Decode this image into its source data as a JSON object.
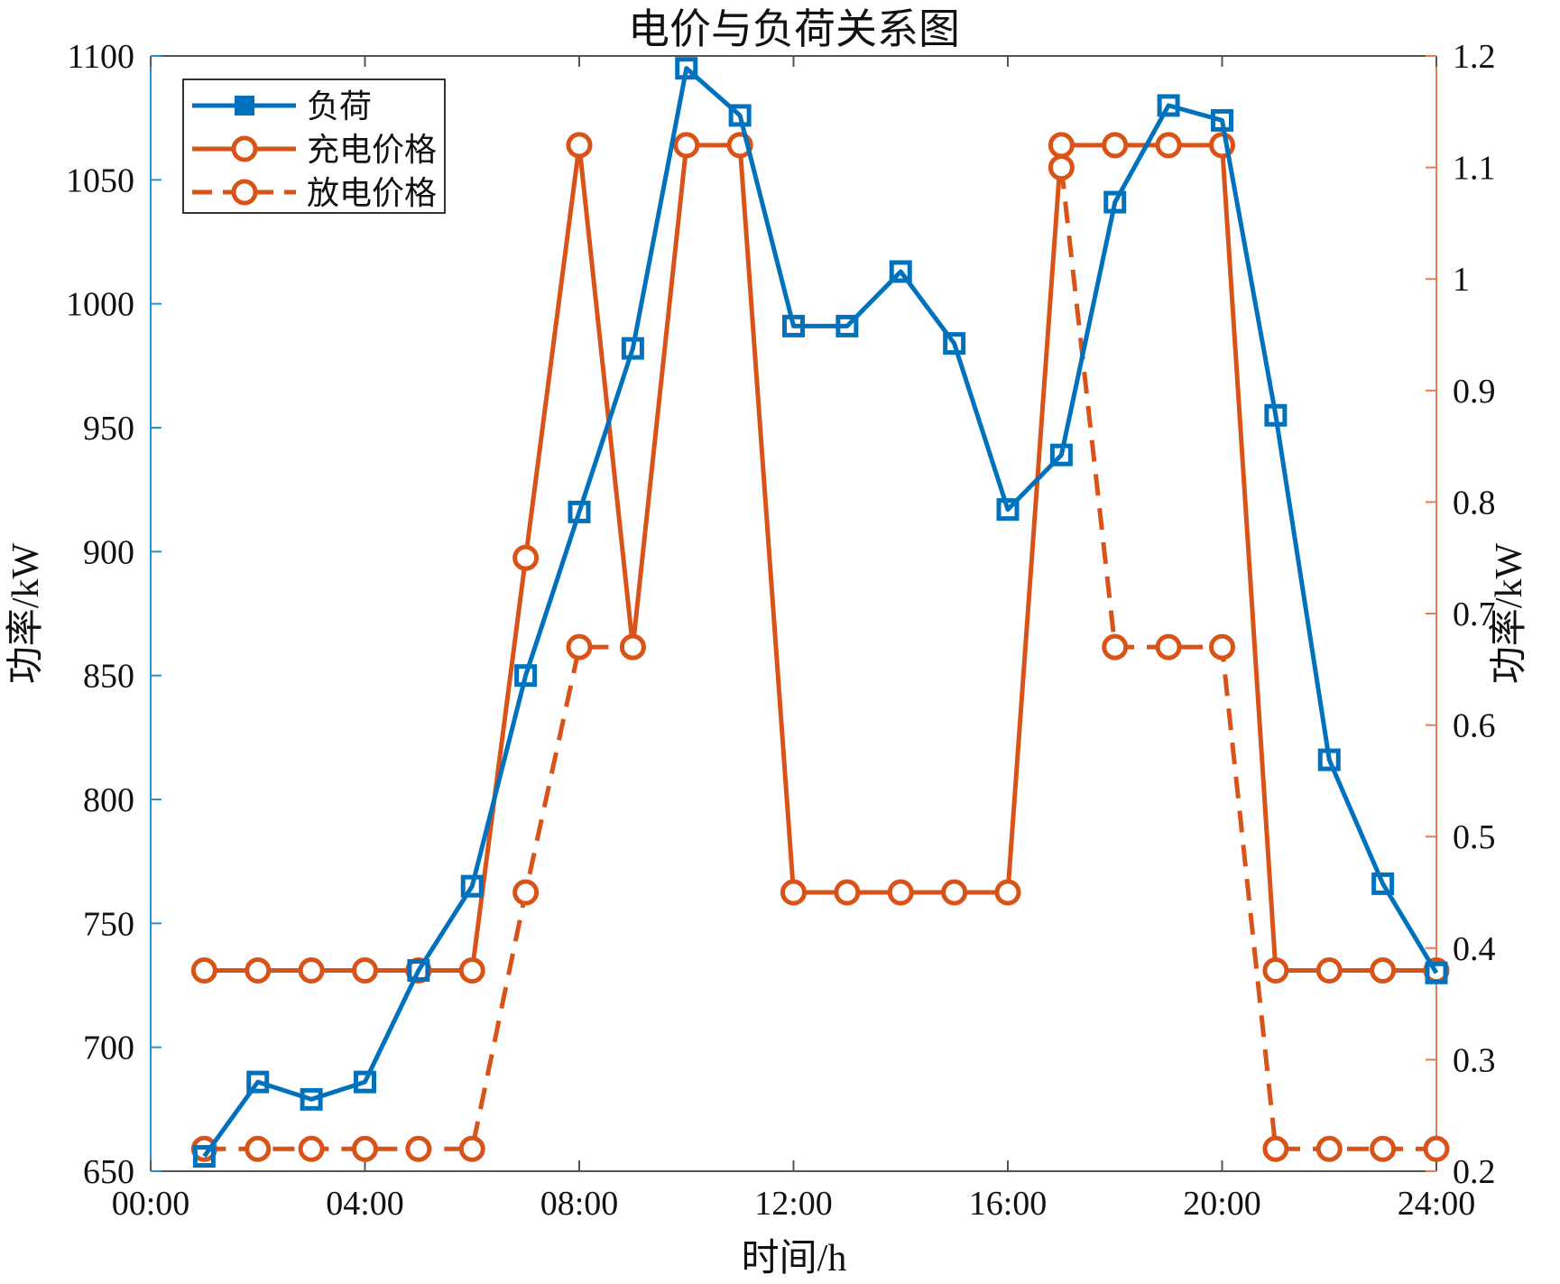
{
  "chart_data": {
    "type": "line",
    "title": "电价与负荷关系图",
    "xlabel": "时间/h",
    "ylabel_left": "功率/kW",
    "ylabel_right": "功率/kW",
    "x": [
      1,
      2,
      3,
      4,
      5,
      6,
      7,
      8,
      9,
      10,
      11,
      12,
      13,
      14,
      15,
      16,
      17,
      18,
      19,
      20,
      21,
      22,
      23,
      24
    ],
    "xlim": [
      0,
      24
    ],
    "xticks": [
      0,
      4,
      8,
      12,
      16,
      20,
      24
    ],
    "xtick_labels": [
      "00:00",
      "04:00",
      "08:00",
      "12:00",
      "16:00",
      "20:00",
      "24:00"
    ],
    "ylim_left": [
      650,
      1100
    ],
    "yticks_left": [
      "650",
      "700",
      "750",
      "800",
      "850",
      "900",
      "950",
      "1000",
      "1050",
      "1100"
    ],
    "ylim_right": [
      0.2,
      1.2
    ],
    "yticks_right": [
      "0.2",
      "0.3",
      "0.4",
      "0.5",
      "0.6",
      "0.7",
      "0.8",
      "0.9",
      "1",
      "1.1",
      "1.2"
    ],
    "grid": false,
    "legend_position": "top-left",
    "series": [
      {
        "name": "负荷",
        "axis": "left",
        "color": "#0072bd",
        "marker": "square",
        "dash": "solid",
        "values": [
          656,
          686,
          679,
          686,
          731,
          765,
          850,
          916,
          982,
          1095,
          1076,
          991,
          991,
          1013,
          984,
          917,
          939,
          1041,
          1080,
          1074,
          955,
          816,
          766,
          730
        ]
      },
      {
        "name": "充电价格",
        "axis": "right",
        "color": "#d95319",
        "marker": "circle",
        "dash": "solid",
        "values": [
          0.38,
          0.38,
          0.38,
          0.38,
          0.38,
          0.38,
          0.75,
          1.12,
          0.67,
          1.12,
          1.12,
          0.45,
          0.45,
          0.45,
          0.45,
          0.45,
          1.12,
          1.12,
          1.12,
          1.12,
          0.38,
          0.38,
          0.38,
          0.38
        ]
      },
      {
        "name": "放电价格",
        "axis": "right",
        "color": "#d95319",
        "marker": "circle",
        "dash": "dashed",
        "values": [
          0.22,
          0.22,
          0.22,
          0.22,
          0.22,
          0.22,
          0.45,
          0.67,
          0.67,
          null,
          null,
          null,
          null,
          null,
          null,
          null,
          1.1,
          0.67,
          0.67,
          0.67,
          0.22,
          0.22,
          0.22,
          0.22
        ]
      }
    ]
  }
}
